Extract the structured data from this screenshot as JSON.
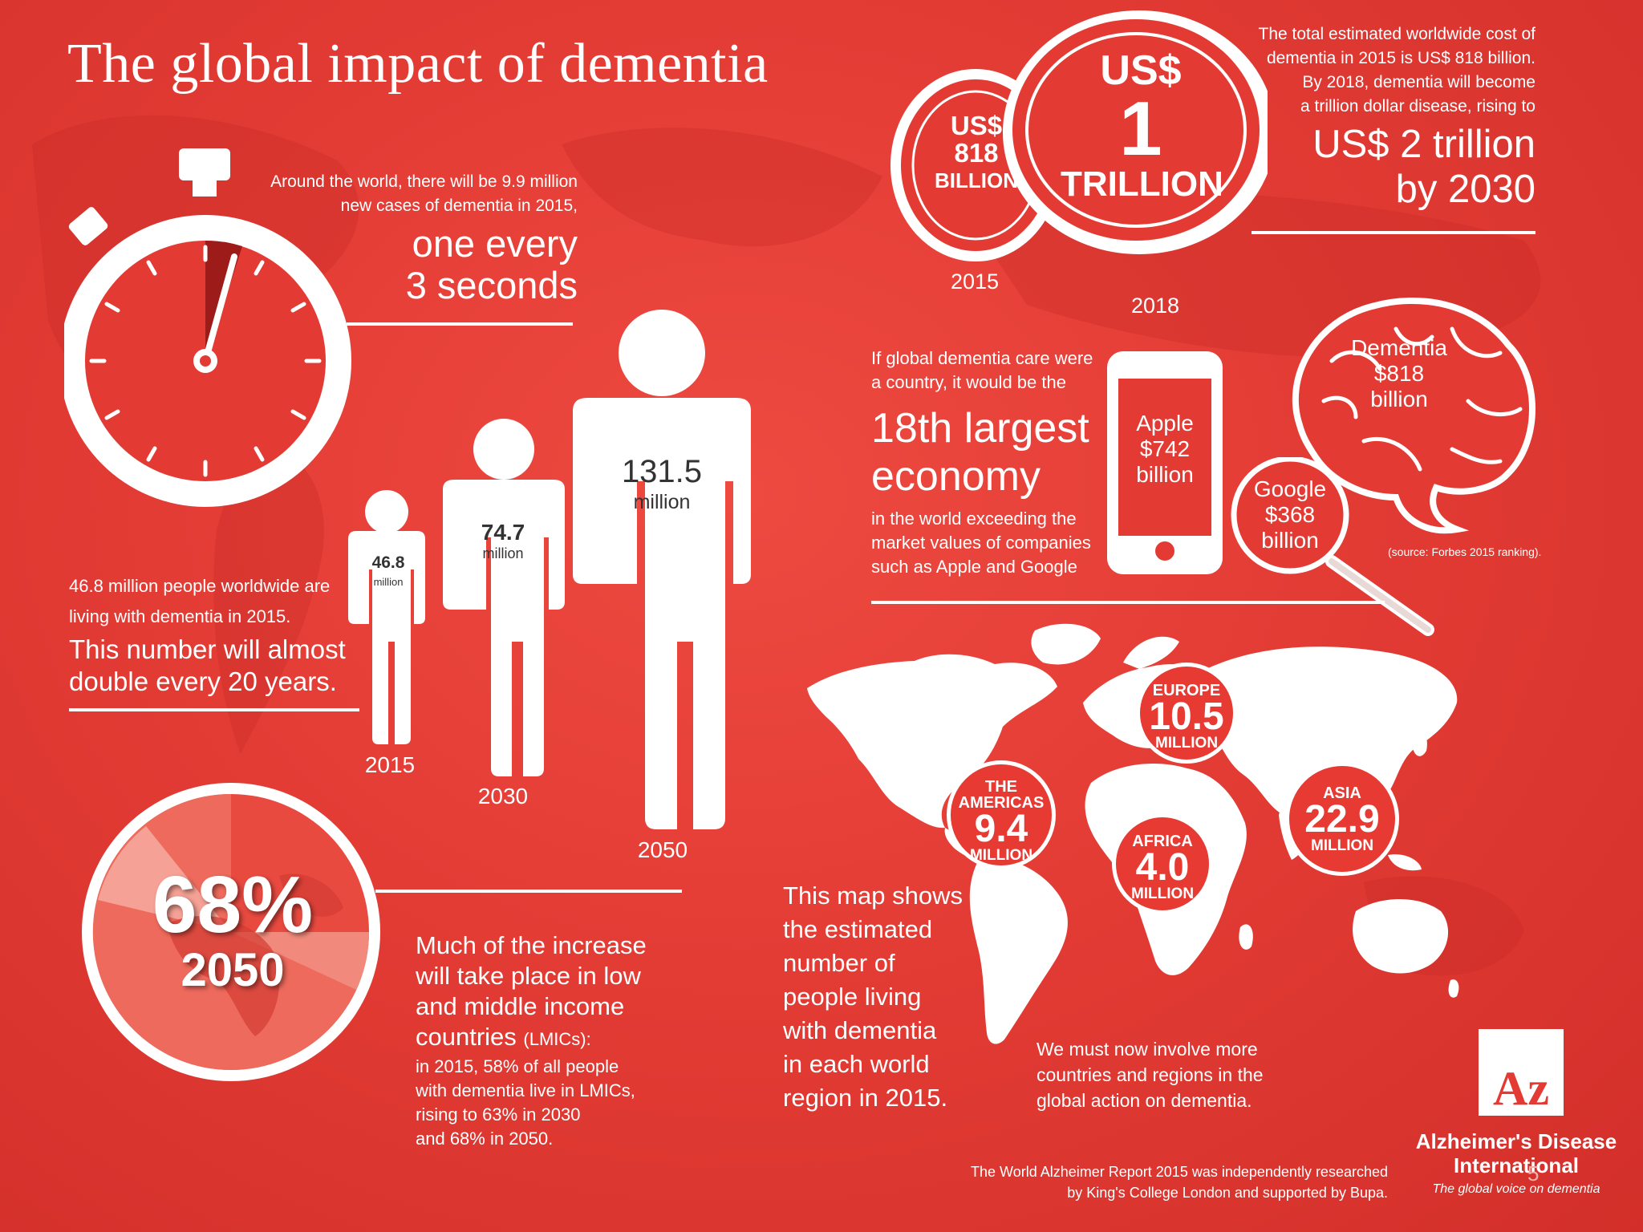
{
  "title": "The global impact of dementia",
  "stopwatch": {
    "line1": "Around the world, there will be 9.9 million",
    "line2": "new cases of dementia in 2015,",
    "big1": "one every",
    "big2": "3 seconds"
  },
  "people": {
    "intro_line1": "46.8 million people worldwide are",
    "intro_line2": "living with dementia in 2015.",
    "big_line1": "This number will almost",
    "big_line2": "double every 20 years.",
    "figures": [
      {
        "value": "46.8",
        "unit": "million",
        "year": "2015"
      },
      {
        "value": "74.7",
        "unit": "million",
        "year": "2030"
      },
      {
        "value": "131.5",
        "unit": "million",
        "year": "2050"
      }
    ]
  },
  "cost": {
    "line1": "The total estimated worldwide cost of",
    "line2": "dementia in 2015 is US$ 818 billion.",
    "line3": "By 2018, dementia will become",
    "line4": "a trillion dollar disease, rising to",
    "big1": "US$ 2 trillion",
    "big2": "by 2030",
    "coin_small": {
      "l1": "US$",
      "l2": "818",
      "l3": "BILLION",
      "year": "2015"
    },
    "coin_big": {
      "l1": "US$",
      "l2": "1",
      "l3": "TRILLION",
      "year": "2018"
    }
  },
  "economy": {
    "line1": "If global dementia care were",
    "line2": "a country, it would be the",
    "big1": "18th largest",
    "big2": "economy",
    "sub1": "in the world exceeding the",
    "sub2": "market values of companies",
    "sub3": "such as Apple and Google",
    "apple": {
      "l1": "Apple",
      "l2": "$742",
      "l3": "billion"
    },
    "google": {
      "l1": "Google",
      "l2": "$368",
      "l3": "billion"
    },
    "brain": {
      "l1": "Dementia",
      "l2": "$818",
      "l3": "billion"
    },
    "source": "(source: Forbes 2015 ranking)."
  },
  "lmic": {
    "pct": "68%",
    "year": "2050",
    "big1": "Much of the increase",
    "big2": "will take place in low",
    "big3": "and middle income",
    "big4": "countries",
    "big4_small": "(LMICs):",
    "s1": "in 2015, 58% of all people",
    "s2": "with dementia live in LMICs,",
    "s3": "rising to 63% in 2030",
    "s4": "and 68% in 2050."
  },
  "map": {
    "desc": [
      "This map shows",
      "the estimated",
      "number of",
      "people living",
      "with dementia",
      "in each world",
      "region in 2015."
    ],
    "regions": [
      {
        "name1": "EUROPE",
        "name2": "",
        "value": "10.5",
        "unit": "MILLION"
      },
      {
        "name1": "THE",
        "name2": "AMERICAS",
        "value": "9.4",
        "unit": "MILLION"
      },
      {
        "name1": "AFRICA",
        "name2": "",
        "value": "4.0",
        "unit": "MILLION"
      },
      {
        "name1": "ASIA",
        "name2": "",
        "value": "22.9",
        "unit": "MILLION"
      }
    ],
    "action1": "We must now involve more",
    "action2": "countries and regions in the",
    "action3": "global action on dementia."
  },
  "footer": {
    "line1": "The World Alzheimer Report 2015 was independently researched",
    "line2": "by King's College London and supported by Bupa."
  },
  "logo": {
    "mark": "Az",
    "name1": "Alzheimer's Disease",
    "name2": "International",
    "tagline": "The global voice on dementia",
    "page": "5"
  }
}
